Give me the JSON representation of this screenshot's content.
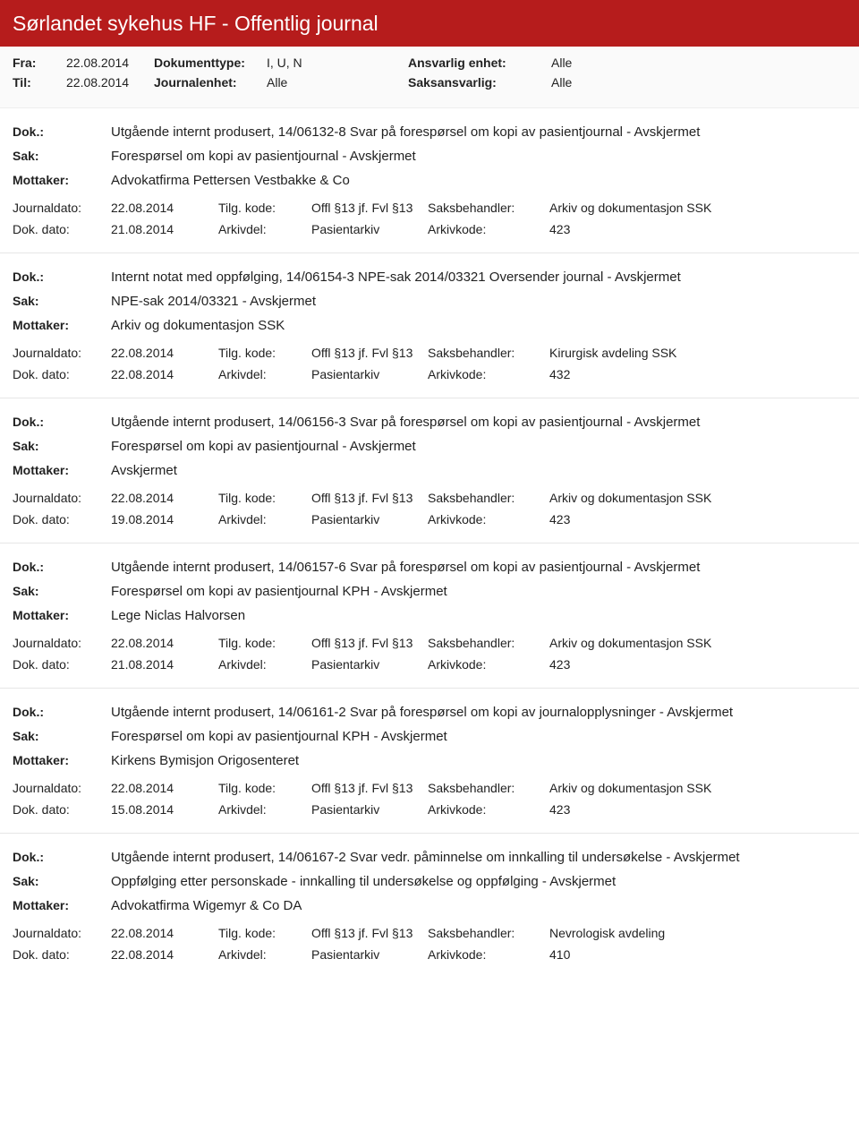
{
  "title": "Sørlandet sykehus HF - Offentlig journal",
  "meta": {
    "fra_lbl": "Fra:",
    "til_lbl": "Til:",
    "fra": "22.08.2014",
    "til": "22.08.2014",
    "dt_lbl": "Dokumenttype:",
    "je_lbl": "Journalenhet:",
    "dt": "I, U, N",
    "je": "Alle",
    "ae_lbl": "Ansvarlig enhet:",
    "sa_lbl": "Saksansvarlig:",
    "ae": "Alle",
    "sa": "Alle"
  },
  "labels": {
    "dok": "Dok.:",
    "sak": "Sak:",
    "mottaker": "Mottaker:",
    "journaldato": "Journaldato:",
    "dokdato": "Dok. dato:",
    "tilg": "Tilg. kode:",
    "arkivdel": "Arkivdel:",
    "saksbeh": "Saksbehandler:",
    "arkivkode": "Arkivkode:"
  },
  "entries": [
    {
      "dok": "Utgående internt produsert, 14/06132-8 Svar på forespørsel om kopi av pasientjournal - Avskjermet",
      "sak": "Forespørsel om kopi av pasientjournal - Avskjermet",
      "mottaker": "Advokatfirma Pettersen Vestbakke & Co",
      "journaldato": "22.08.2014",
      "tilg": "Offl §13 jf. Fvl §13",
      "saksbeh": "Arkiv og dokumentasjon SSK",
      "dokdato": "21.08.2014",
      "arkivdel": "Pasientarkiv",
      "arkivkode": "423"
    },
    {
      "dok": "Internt notat med oppfølging, 14/06154-3 NPE-sak 2014/03321 Oversender journal - Avskjermet",
      "sak": "NPE-sak 2014/03321 - Avskjermet",
      "mottaker": "Arkiv og dokumentasjon SSK",
      "journaldato": "22.08.2014",
      "tilg": "Offl §13 jf. Fvl §13",
      "saksbeh": "Kirurgisk avdeling SSK",
      "dokdato": "22.08.2014",
      "arkivdel": "Pasientarkiv",
      "arkivkode": "432"
    },
    {
      "dok": "Utgående internt produsert, 14/06156-3 Svar på forespørsel om kopi av pasientjournal - Avskjermet",
      "sak": "Forespørsel om kopi av pasientjournal - Avskjermet",
      "mottaker": "Avskjermet",
      "journaldato": "22.08.2014",
      "tilg": "Offl §13 jf. Fvl §13",
      "saksbeh": "Arkiv og dokumentasjon SSK",
      "dokdato": "19.08.2014",
      "arkivdel": "Pasientarkiv",
      "arkivkode": "423"
    },
    {
      "dok": "Utgående internt produsert, 14/06157-6 Svar på forespørsel om kopi av pasientjournal - Avskjermet",
      "sak": "Forespørsel om kopi av pasientjournal KPH - Avskjermet",
      "mottaker": "Lege Niclas Halvorsen",
      "journaldato": "22.08.2014",
      "tilg": "Offl §13 jf. Fvl §13",
      "saksbeh": "Arkiv og dokumentasjon SSK",
      "dokdato": "21.08.2014",
      "arkivdel": "Pasientarkiv",
      "arkivkode": "423"
    },
    {
      "dok": "Utgående internt produsert, 14/06161-2 Svar på forespørsel om kopi av journalopplysninger - Avskjermet",
      "sak": "Forespørsel om kopi av pasientjournal KPH - Avskjermet",
      "mottaker": "Kirkens Bymisjon Origosenteret",
      "journaldato": "22.08.2014",
      "tilg": "Offl §13 jf. Fvl §13",
      "saksbeh": "Arkiv og dokumentasjon SSK",
      "dokdato": "15.08.2014",
      "arkivdel": "Pasientarkiv",
      "arkivkode": "423"
    },
    {
      "dok": "Utgående internt produsert, 14/06167-2 Svar vedr. påminnelse om innkalling til undersøkelse - Avskjermet",
      "sak": "Oppfølging etter personskade - innkalling til undersøkelse og oppfølging - Avskjermet",
      "mottaker": "Advokatfirma Wigemyr & Co DA",
      "journaldato": "22.08.2014",
      "tilg": "Offl §13 jf. Fvl §13",
      "saksbeh": "Nevrologisk avdeling",
      "dokdato": "22.08.2014",
      "arkivdel": "Pasientarkiv",
      "arkivkode": "410"
    }
  ]
}
